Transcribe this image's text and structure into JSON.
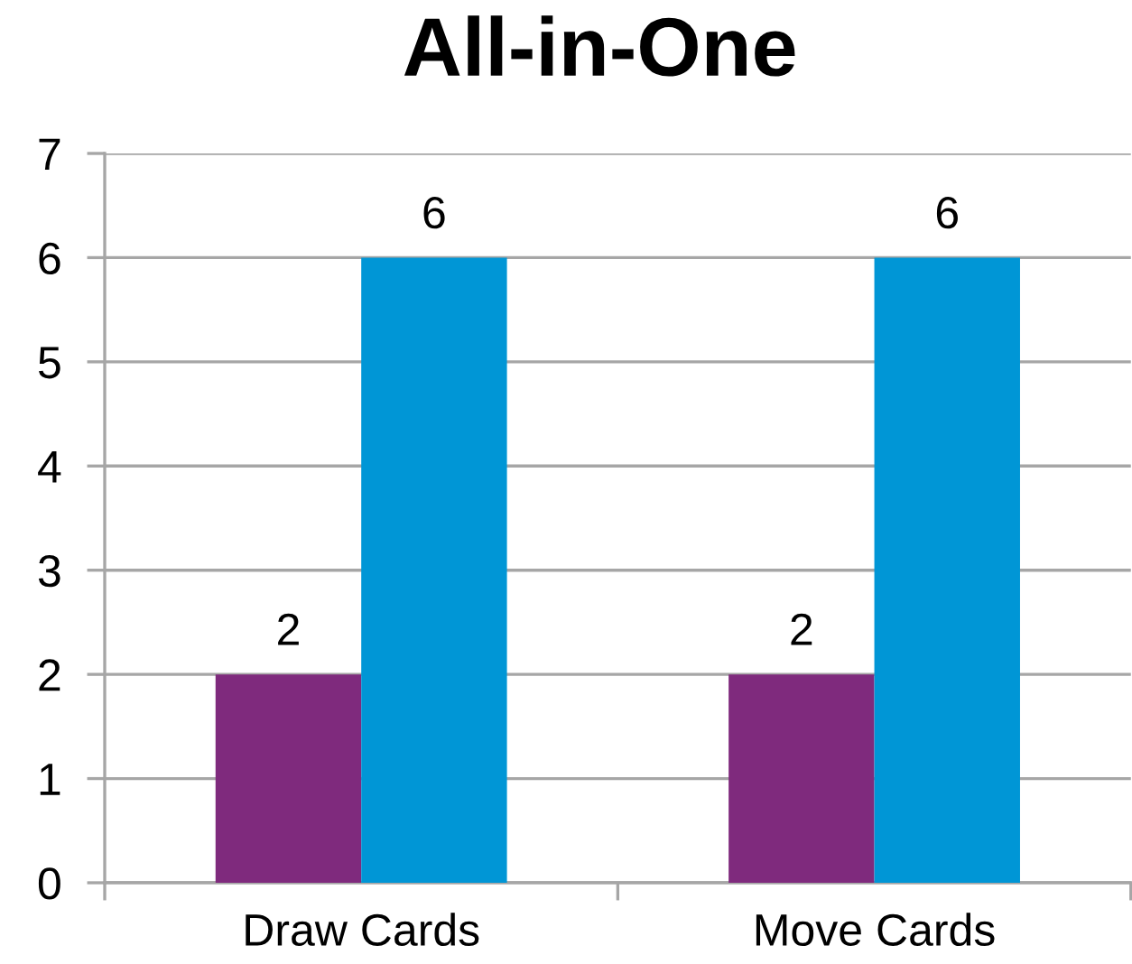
{
  "chart_data": {
    "type": "bar",
    "title": "All-in-One",
    "categories": [
      "Draw Cards",
      "Move Cards"
    ],
    "series": [
      {
        "color": "#7f2a7d",
        "values": [
          2,
          2
        ]
      },
      {
        "color": "#0096d6",
        "values": [
          6,
          6
        ]
      }
    ],
    "ylim": [
      0,
      7
    ],
    "yticks": [
      0,
      1,
      2,
      3,
      4,
      5,
      6,
      7
    ],
    "grid": "y",
    "data_labels": true
  }
}
